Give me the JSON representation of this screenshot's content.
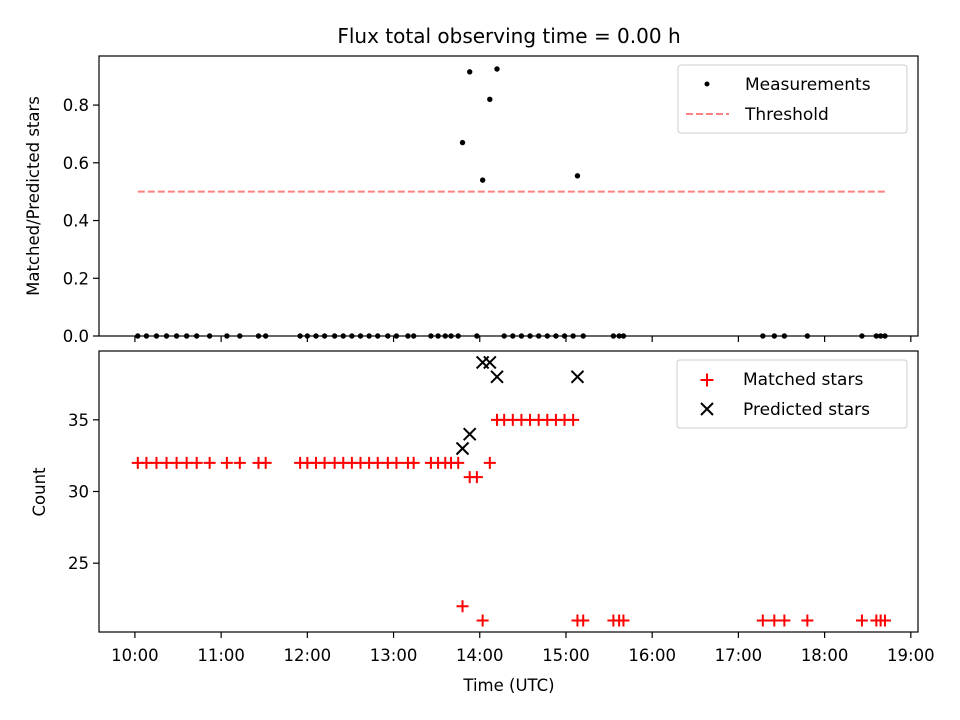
{
  "chart_data": [
    {
      "type": "scatter",
      "title": "Flux total observing time = 0.00 h",
      "xlabel": "",
      "ylabel": "Matched/Predicted stars",
      "xlim": [
        "09:35",
        "19:05"
      ],
      "ylim": [
        0,
        0.97
      ],
      "yticks": [
        0.0,
        0.2,
        0.4,
        0.6,
        0.8
      ],
      "ytick_labels": [
        "0.0",
        "0.2",
        "0.4",
        "0.6",
        "0.8"
      ],
      "legend_position": "top-right",
      "legend": [
        "Measurements",
        "Threshold"
      ],
      "grid": false,
      "series": [
        {
          "name": "Measurements",
          "marker": "dot",
          "color": "#000000",
          "points": [
            {
              "x": "10:02",
              "y": 0
            },
            {
              "x": "10:08",
              "y": 0
            },
            {
              "x": "10:15",
              "y": 0
            },
            {
              "x": "10:22",
              "y": 0
            },
            {
              "x": "10:29",
              "y": 0
            },
            {
              "x": "10:36",
              "y": 0
            },
            {
              "x": "10:43",
              "y": 0
            },
            {
              "x": "10:52",
              "y": 0
            },
            {
              "x": "11:04",
              "y": 0
            },
            {
              "x": "11:13",
              "y": 0
            },
            {
              "x": "11:26",
              "y": 0
            },
            {
              "x": "11:31",
              "y": 0
            },
            {
              "x": "11:55",
              "y": 0
            },
            {
              "x": "12:00",
              "y": 0
            },
            {
              "x": "12:06",
              "y": 0
            },
            {
              "x": "12:12",
              "y": 0
            },
            {
              "x": "12:19",
              "y": 0
            },
            {
              "x": "12:25",
              "y": 0
            },
            {
              "x": "12:31",
              "y": 0
            },
            {
              "x": "12:37",
              "y": 0
            },
            {
              "x": "12:43",
              "y": 0
            },
            {
              "x": "12:49",
              "y": 0
            },
            {
              "x": "12:56",
              "y": 0
            },
            {
              "x": "13:02",
              "y": 0
            },
            {
              "x": "13:10",
              "y": 0
            },
            {
              "x": "13:14",
              "y": 0
            },
            {
              "x": "13:26",
              "y": 0
            },
            {
              "x": "13:31",
              "y": 0
            },
            {
              "x": "13:36",
              "y": 0
            },
            {
              "x": "13:40",
              "y": 0
            },
            {
              "x": "13:45",
              "y": 0
            },
            {
              "x": "13:48",
              "y": 0.67
            },
            {
              "x": "13:53",
              "y": 0.915
            },
            {
              "x": "13:58",
              "y": 0
            },
            {
              "x": "14:02",
              "y": 0.54
            },
            {
              "x": "14:07",
              "y": 0.82
            },
            {
              "x": "14:12",
              "y": 0.925
            },
            {
              "x": "14:17",
              "y": 0
            },
            {
              "x": "14:23",
              "y": 0
            },
            {
              "x": "14:29",
              "y": 0
            },
            {
              "x": "14:35",
              "y": 0
            },
            {
              "x": "14:41",
              "y": 0
            },
            {
              "x": "14:47",
              "y": 0
            },
            {
              "x": "14:53",
              "y": 0
            },
            {
              "x": "14:59",
              "y": 0
            },
            {
              "x": "15:05",
              "y": 0
            },
            {
              "x": "15:08",
              "y": 0.555
            },
            {
              "x": "15:12",
              "y": 0
            },
            {
              "x": "15:33",
              "y": 0
            },
            {
              "x": "15:37",
              "y": 0
            },
            {
              "x": "15:40",
              "y": 0
            },
            {
              "x": "17:17",
              "y": 0
            },
            {
              "x": "17:25",
              "y": 0
            },
            {
              "x": "17:32",
              "y": 0
            },
            {
              "x": "17:48",
              "y": 0
            },
            {
              "x": "18:26",
              "y": 0
            },
            {
              "x": "18:36",
              "y": 0
            },
            {
              "x": "18:39",
              "y": 0
            },
            {
              "x": "18:42",
              "y": 0
            }
          ]
        },
        {
          "name": "Threshold",
          "type": "line",
          "style": "dashed",
          "color": "#ff8080",
          "x": [
            "10:02",
            "18:42"
          ],
          "values": [
            0.5,
            0.5
          ]
        }
      ]
    },
    {
      "type": "scatter",
      "title": "",
      "xlabel": "Time (UTC)",
      "ylabel": "Count",
      "xlim": [
        "09:35",
        "19:05"
      ],
      "xticks": [
        "10:00",
        "11:00",
        "12:00",
        "13:00",
        "14:00",
        "15:00",
        "16:00",
        "17:00",
        "18:00",
        "19:00"
      ],
      "ylim": [
        20.2,
        39.8
      ],
      "yticks": [
        25,
        30,
        35
      ],
      "ytick_labels": [
        "25",
        "30",
        "35"
      ],
      "legend_position": "top-right",
      "legend": [
        "Matched stars",
        "Predicted stars"
      ],
      "grid": false,
      "series": [
        {
          "name": "Matched stars",
          "marker": "plus",
          "color": "#ff0000",
          "points": [
            {
              "x": "10:02",
              "y": 32
            },
            {
              "x": "10:08",
              "y": 32
            },
            {
              "x": "10:15",
              "y": 32
            },
            {
              "x": "10:22",
              "y": 32
            },
            {
              "x": "10:29",
              "y": 32
            },
            {
              "x": "10:36",
              "y": 32
            },
            {
              "x": "10:43",
              "y": 32
            },
            {
              "x": "10:52",
              "y": 32
            },
            {
              "x": "11:04",
              "y": 32
            },
            {
              "x": "11:13",
              "y": 32
            },
            {
              "x": "11:26",
              "y": 32
            },
            {
              "x": "11:31",
              "y": 32
            },
            {
              "x": "11:55",
              "y": 32
            },
            {
              "x": "12:00",
              "y": 32
            },
            {
              "x": "12:06",
              "y": 32
            },
            {
              "x": "12:12",
              "y": 32
            },
            {
              "x": "12:19",
              "y": 32
            },
            {
              "x": "12:25",
              "y": 32
            },
            {
              "x": "12:31",
              "y": 32
            },
            {
              "x": "12:37",
              "y": 32
            },
            {
              "x": "12:43",
              "y": 32
            },
            {
              "x": "12:49",
              "y": 32
            },
            {
              "x": "12:56",
              "y": 32
            },
            {
              "x": "13:02",
              "y": 32
            },
            {
              "x": "13:10",
              "y": 32
            },
            {
              "x": "13:14",
              "y": 32
            },
            {
              "x": "13:26",
              "y": 32
            },
            {
              "x": "13:31",
              "y": 32
            },
            {
              "x": "13:36",
              "y": 32
            },
            {
              "x": "13:40",
              "y": 32
            },
            {
              "x": "13:45",
              "y": 32
            },
            {
              "x": "13:48",
              "y": 22
            },
            {
              "x": "13:53",
              "y": 31
            },
            {
              "x": "13:58",
              "y": 31
            },
            {
              "x": "14:02",
              "y": 21
            },
            {
              "x": "14:07",
              "y": 32
            },
            {
              "x": "14:12",
              "y": 35
            },
            {
              "x": "14:17",
              "y": 35
            },
            {
              "x": "14:23",
              "y": 35
            },
            {
              "x": "14:29",
              "y": 35
            },
            {
              "x": "14:35",
              "y": 35
            },
            {
              "x": "14:41",
              "y": 35
            },
            {
              "x": "14:47",
              "y": 35
            },
            {
              "x": "14:53",
              "y": 35
            },
            {
              "x": "14:59",
              "y": 35
            },
            {
              "x": "15:05",
              "y": 35
            },
            {
              "x": "15:08",
              "y": 21
            },
            {
              "x": "15:12",
              "y": 21
            },
            {
              "x": "15:33",
              "y": 21
            },
            {
              "x": "15:37",
              "y": 21
            },
            {
              "x": "15:40",
              "y": 21
            },
            {
              "x": "17:17",
              "y": 21
            },
            {
              "x": "17:25",
              "y": 21
            },
            {
              "x": "17:32",
              "y": 21
            },
            {
              "x": "17:48",
              "y": 21
            },
            {
              "x": "18:26",
              "y": 21
            },
            {
              "x": "18:36",
              "y": 21
            },
            {
              "x": "18:39",
              "y": 21
            },
            {
              "x": "18:42",
              "y": 21
            }
          ]
        },
        {
          "name": "Predicted stars",
          "marker": "x",
          "color": "#000000",
          "points": [
            {
              "x": "13:48",
              "y": 33
            },
            {
              "x": "13:53",
              "y": 34
            },
            {
              "x": "14:02",
              "y": 39
            },
            {
              "x": "14:07",
              "y": 39
            },
            {
              "x": "14:12",
              "y": 38
            },
            {
              "x": "15:08",
              "y": 38
            }
          ]
        }
      ]
    }
  ]
}
